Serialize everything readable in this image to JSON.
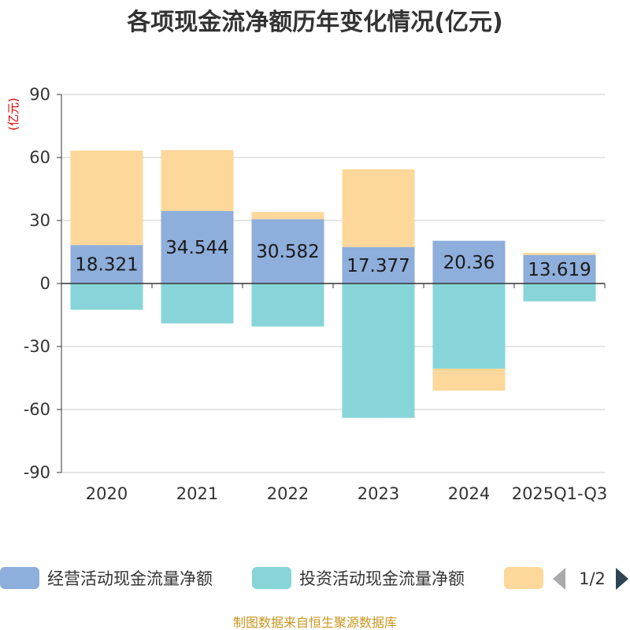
{
  "title": "各项现金流净额历年变化情况(亿元)",
  "footer": "制图数据来自恒生聚源数据库",
  "legend": {
    "page_indicator": "1/2"
  },
  "chart_data": {
    "type": "bar",
    "stacked": true,
    "title": "各项现金流净额历年变化情况(亿元)",
    "ylabel": "(亿元)",
    "xlabel": "",
    "ylim": [
      -90,
      90
    ],
    "yticks": [
      90,
      60,
      30,
      0,
      -30,
      -60,
      -90
    ],
    "grid": true,
    "legend_position": "bottom",
    "categories": [
      "2020",
      "2021",
      "2022",
      "2023",
      "2024",
      "2025Q1-Q3"
    ],
    "series": [
      {
        "name": "经营活动现金流量净额",
        "color": "#8eaedb",
        "values": [
          18.321,
          34.544,
          30.582,
          17.377,
          20.36,
          13.619
        ],
        "labels": [
          "18.321",
          "34.544",
          "30.582",
          "17.377",
          "20.36",
          "13.619"
        ],
        "show_labels": true
      },
      {
        "name": "投资活动现金流量净额",
        "color": "#87d5d8",
        "values": [
          -12.5,
          -19,
          -20.5,
          -64,
          -40.5,
          -8.5
        ],
        "show_labels": false
      },
      {
        "name": "",
        "color": "#fdd89a",
        "values": [
          45,
          29,
          3.5,
          37,
          -10.5,
          1
        ],
        "show_labels": false
      }
    ]
  }
}
